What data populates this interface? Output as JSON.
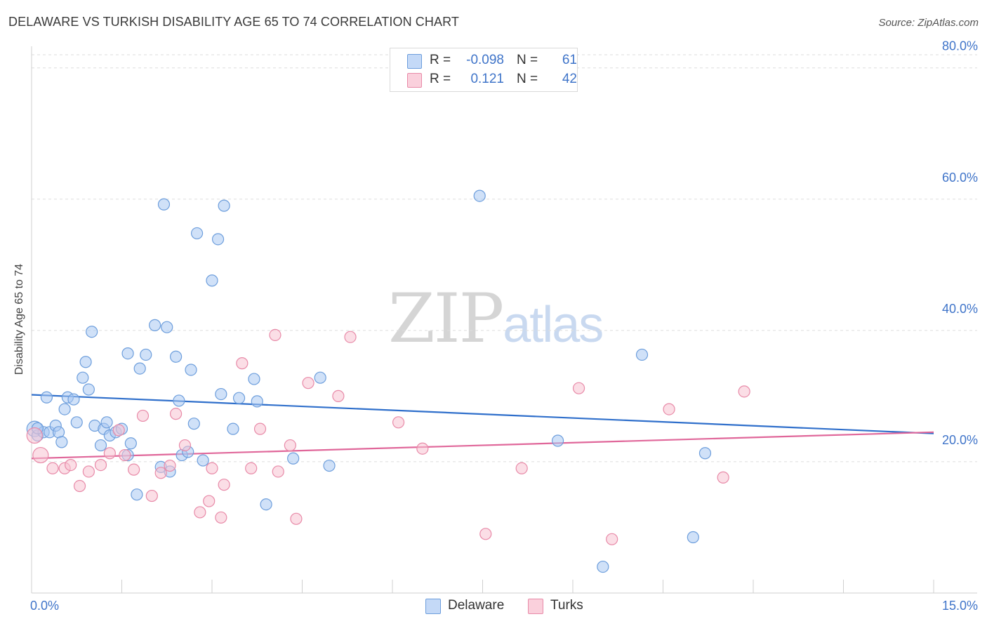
{
  "title": "DELAWARE VS TURKISH DISABILITY AGE 65 TO 74 CORRELATION CHART",
  "source": "Source: ZipAtlas.com",
  "watermark": {
    "zip": "ZIP",
    "atlas": "atlas"
  },
  "legend": {
    "rows": [
      {
        "r_label": "R =",
        "r_value": "-0.098",
        "n_label": "N =",
        "n_value": "61",
        "color": "#a9c8f2"
      },
      {
        "r_label": "R =",
        "r_value": "0.121",
        "n_label": "N =",
        "n_value": "42",
        "color": "#f7b6c8"
      }
    ]
  },
  "bottom_legend": [
    {
      "label": "Delaware",
      "color": "#a9c8f2"
    },
    {
      "label": "Turks",
      "color": "#f7b6c8"
    }
  ],
  "colors": {
    "delaware_fill": "#a9c8f2",
    "delaware_stroke": "#6d9edc",
    "delaware_line": "#2f6fcb",
    "turks_fill": "#f7c3d2",
    "turks_stroke": "#e88aa8",
    "turks_line": "#e0679a",
    "tick_text": "#3f74c9",
    "grid": "#dedede"
  },
  "chart_data": {
    "type": "scatter",
    "title": "DELAWARE VS TURKISH DISABILITY AGE 65 TO 74 CORRELATION CHART",
    "xlabel": "",
    "ylabel": "Disability Age 65 to 74",
    "xlim": [
      0,
      15
    ],
    "ylim": [
      0,
      82
    ],
    "x_tick_labels": [
      "0.0%",
      "15.0%"
    ],
    "y_ticks": [
      20,
      40,
      60,
      80
    ],
    "y_tick_labels": [
      "20.0%",
      "40.0%",
      "60.0%",
      "80.0%"
    ],
    "grid": "horizontal dashed",
    "legend_position": "top-center",
    "series": [
      {
        "name": "Delaware",
        "trend": {
          "x": [
            0.0,
            15.0
          ],
          "y": [
            30.2,
            24.3
          ]
        },
        "points": [
          [
            0.05,
            25.0
          ],
          [
            0.1,
            24.0
          ],
          [
            0.2,
            24.5
          ],
          [
            0.25,
            29.8
          ],
          [
            0.3,
            24.5
          ],
          [
            0.4,
            25.5
          ],
          [
            0.45,
            24.5
          ],
          [
            0.5,
            23.0
          ],
          [
            0.55,
            28.0
          ],
          [
            0.6,
            29.8
          ],
          [
            0.7,
            29.5
          ],
          [
            0.75,
            26.0
          ],
          [
            0.85,
            32.8
          ],
          [
            0.9,
            35.2
          ],
          [
            0.95,
            31.0
          ],
          [
            1.0,
            39.8
          ],
          [
            1.05,
            25.5
          ],
          [
            1.15,
            22.5
          ],
          [
            1.2,
            25.0
          ],
          [
            1.25,
            26.0
          ],
          [
            1.3,
            24.0
          ],
          [
            1.4,
            24.5
          ],
          [
            1.5,
            25.0
          ],
          [
            1.6,
            21.0
          ],
          [
            1.65,
            22.8
          ],
          [
            1.6,
            36.5
          ],
          [
            1.75,
            15.0
          ],
          [
            1.8,
            34.2
          ],
          [
            1.9,
            36.3
          ],
          [
            2.05,
            40.8
          ],
          [
            2.15,
            19.2
          ],
          [
            2.2,
            59.2
          ],
          [
            2.25,
            40.5
          ],
          [
            2.3,
            18.5
          ],
          [
            2.4,
            36.0
          ],
          [
            2.45,
            29.3
          ],
          [
            2.5,
            21.0
          ],
          [
            2.6,
            21.5
          ],
          [
            2.65,
            34.0
          ],
          [
            2.7,
            25.8
          ],
          [
            2.75,
            54.8
          ],
          [
            2.85,
            20.2
          ],
          [
            3.0,
            47.6
          ],
          [
            3.1,
            53.9
          ],
          [
            3.15,
            30.3
          ],
          [
            3.2,
            59.0
          ],
          [
            3.35,
            25.0
          ],
          [
            3.45,
            29.7
          ],
          [
            3.7,
            32.6
          ],
          [
            3.75,
            29.2
          ],
          [
            3.9,
            13.5
          ],
          [
            4.35,
            20.5
          ],
          [
            4.8,
            32.8
          ],
          [
            4.95,
            19.4
          ],
          [
            7.45,
            60.5
          ],
          [
            8.75,
            23.2
          ],
          [
            9.5,
            4.0
          ],
          [
            10.15,
            36.3
          ],
          [
            11.0,
            8.5
          ],
          [
            11.2,
            21.3
          ],
          [
            0.1,
            25.1
          ]
        ]
      },
      {
        "name": "Turks",
        "trend": {
          "x": [
            0.0,
            15.0
          ],
          "y": [
            20.5,
            24.5
          ]
        },
        "points": [
          [
            0.05,
            24.0
          ],
          [
            0.15,
            21.0
          ],
          [
            0.35,
            19.0
          ],
          [
            0.55,
            19.0
          ],
          [
            0.65,
            19.5
          ],
          [
            0.8,
            16.3
          ],
          [
            0.95,
            18.5
          ],
          [
            1.15,
            19.5
          ],
          [
            1.3,
            21.3
          ],
          [
            1.45,
            24.8
          ],
          [
            1.55,
            21.0
          ],
          [
            1.7,
            18.8
          ],
          [
            1.85,
            27.0
          ],
          [
            2.0,
            14.8
          ],
          [
            2.15,
            18.3
          ],
          [
            2.3,
            19.4
          ],
          [
            2.4,
            27.3
          ],
          [
            2.55,
            22.5
          ],
          [
            2.8,
            12.3
          ],
          [
            2.95,
            14.0
          ],
          [
            3.0,
            19.0
          ],
          [
            3.15,
            11.5
          ],
          [
            3.2,
            16.5
          ],
          [
            3.5,
            35.0
          ],
          [
            3.65,
            19.0
          ],
          [
            3.8,
            25.0
          ],
          [
            4.1,
            18.5
          ],
          [
            4.05,
            39.3
          ],
          [
            4.3,
            22.5
          ],
          [
            4.4,
            11.3
          ],
          [
            4.6,
            32.0
          ],
          [
            5.1,
            30.0
          ],
          [
            5.3,
            39.0
          ],
          [
            6.1,
            26.0
          ],
          [
            6.5,
            22.0
          ],
          [
            7.55,
            9.0
          ],
          [
            8.15,
            19.0
          ],
          [
            9.1,
            31.2
          ],
          [
            9.65,
            8.2
          ],
          [
            10.6,
            28.0
          ],
          [
            11.5,
            17.6
          ],
          [
            11.85,
            30.7
          ]
        ]
      }
    ]
  }
}
